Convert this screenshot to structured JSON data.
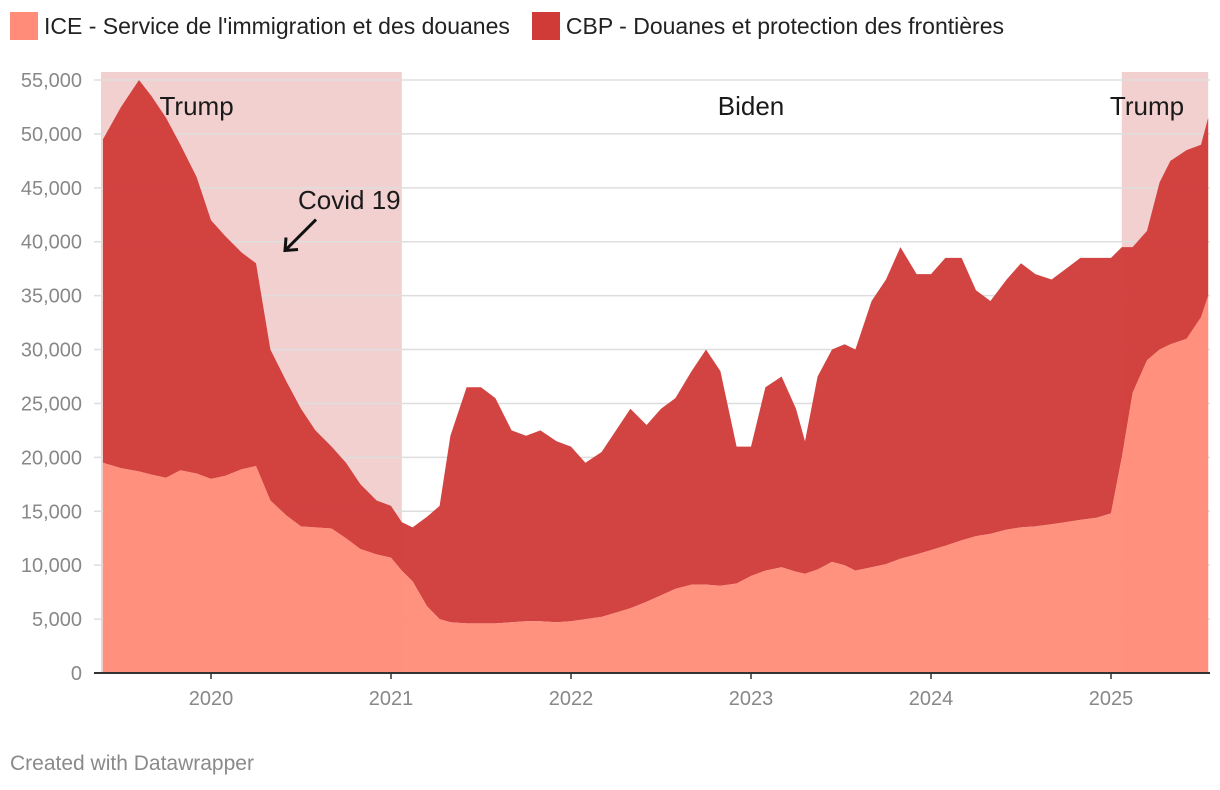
{
  "credit": "Created with Datawrapper",
  "chart_data": {
    "type": "area",
    "stacked": true,
    "ylim": [
      0,
      55000
    ],
    "xlim": [
      2019.35,
      2025.55
    ],
    "grid": true,
    "legend_position": "top-left",
    "y_ticks": [
      {
        "value": 0,
        "label": "0"
      },
      {
        "value": 5000,
        "label": "5,000"
      },
      {
        "value": 10000,
        "label": "10,000"
      },
      {
        "value": 15000,
        "label": "15,000"
      },
      {
        "value": 20000,
        "label": "20,000"
      },
      {
        "value": 25000,
        "label": "25,000"
      },
      {
        "value": 30000,
        "label": "30,000"
      },
      {
        "value": 35000,
        "label": "35,000"
      },
      {
        "value": 40000,
        "label": "40,000"
      },
      {
        "value": 45000,
        "label": "45,000"
      },
      {
        "value": 50000,
        "label": "50,000"
      },
      {
        "value": 55000,
        "label": "55,000"
      }
    ],
    "x_ticks": [
      {
        "value": 2020,
        "label": "2020"
      },
      {
        "value": 2021,
        "label": "2021"
      },
      {
        "value": 2022,
        "label": "2022"
      },
      {
        "value": 2023,
        "label": "2023"
      },
      {
        "value": 2024,
        "label": "2024"
      },
      {
        "value": 2025,
        "label": "2025"
      }
    ],
    "series": [
      {
        "name": "ICE - Service de l'immigration et des douanes",
        "color": "#ff8c78"
      },
      {
        "name": "CBP - Douanes et protection des frontières",
        "color": "#d03a37"
      }
    ],
    "x": [
      2019.4,
      2019.5,
      2019.6,
      2019.67,
      2019.75,
      2019.83,
      2019.92,
      2020.0,
      2020.08,
      2020.17,
      2020.25,
      2020.33,
      2020.42,
      2020.5,
      2020.58,
      2020.67,
      2020.75,
      2020.83,
      2020.92,
      2021.0,
      2021.06,
      2021.12,
      2021.2,
      2021.27,
      2021.33,
      2021.42,
      2021.5,
      2021.58,
      2021.67,
      2021.75,
      2021.83,
      2021.92,
      2022.0,
      2022.08,
      2022.17,
      2022.25,
      2022.33,
      2022.42,
      2022.5,
      2022.58,
      2022.67,
      2022.75,
      2022.83,
      2022.92,
      2023.0,
      2023.08,
      2023.17,
      2023.25,
      2023.3,
      2023.37,
      2023.45,
      2023.52,
      2023.58,
      2023.67,
      2023.75,
      2023.83,
      2023.92,
      2024.0,
      2024.08,
      2024.17,
      2024.25,
      2024.33,
      2024.42,
      2024.5,
      2024.58,
      2024.67,
      2024.75,
      2024.83,
      2024.92,
      2025.0,
      2025.06,
      2025.12,
      2025.2,
      2025.27,
      2025.33,
      2025.42,
      2025.5,
      2025.54
    ],
    "ice": [
      19500,
      19000,
      18700,
      18400,
      18100,
      18800,
      18500,
      18000,
      18300,
      18900,
      19200,
      16000,
      14600,
      13600,
      13500,
      13400,
      12500,
      11500,
      11000,
      10700,
      9500,
      8500,
      6200,
      5000,
      4700,
      4600,
      4600,
      4600,
      4700,
      4800,
      4800,
      4700,
      4800,
      5000,
      5200,
      5600,
      6000,
      6600,
      7200,
      7800,
      8200,
      8200,
      8100,
      8300,
      9000,
      9500,
      9800,
      9400,
      9200,
      9600,
      10300,
      10000,
      9500,
      9800,
      10100,
      10600,
      11000,
      11400,
      11800,
      12300,
      12700,
      12900,
      13300,
      13500,
      13600,
      13800,
      14000,
      14200,
      14400,
      14800,
      20000,
      26000,
      29000,
      30000,
      30500,
      31000,
      33000,
      35000
    ],
    "total": [
      49500,
      52500,
      55000,
      53500,
      51500,
      49000,
      46000,
      42000,
      40500,
      39000,
      38000,
      30000,
      27000,
      24500,
      22500,
      21000,
      19500,
      17500,
      16000,
      15500,
      14000,
      13500,
      14500,
      15500,
      22000,
      26500,
      26500,
      25500,
      22500,
      22000,
      22500,
      21500,
      21000,
      19500,
      20500,
      22500,
      24500,
      23000,
      24500,
      25500,
      28000,
      30000,
      28000,
      21000,
      21000,
      26500,
      27500,
      24500,
      21500,
      27500,
      30000,
      30500,
      30000,
      34500,
      36500,
      39500,
      37000,
      37000,
      38500,
      38500,
      35500,
      34500,
      36500,
      38000,
      37000,
      36500,
      37500,
      38500,
      38500,
      38500,
      39500,
      39500,
      41000,
      45500,
      47500,
      48500,
      49000,
      51500
    ]
  },
  "annotations": {
    "periods": [
      {
        "from": 2019.35,
        "to": 2021.06,
        "label": "Trump",
        "shaded": true,
        "label_x": 2019.92
      },
      {
        "from": 2021.06,
        "to": 2025.06,
        "label": "Biden",
        "shaded": false,
        "label_x": 2023.0
      },
      {
        "from": 2025.06,
        "to": 2025.54,
        "label": "Trump",
        "shaded": true,
        "label_x": 2025.2
      }
    ],
    "shade_color": "#f2d0d0",
    "covid": {
      "label": "Covid 19",
      "x": 2020.4,
      "y": 39000
    }
  }
}
